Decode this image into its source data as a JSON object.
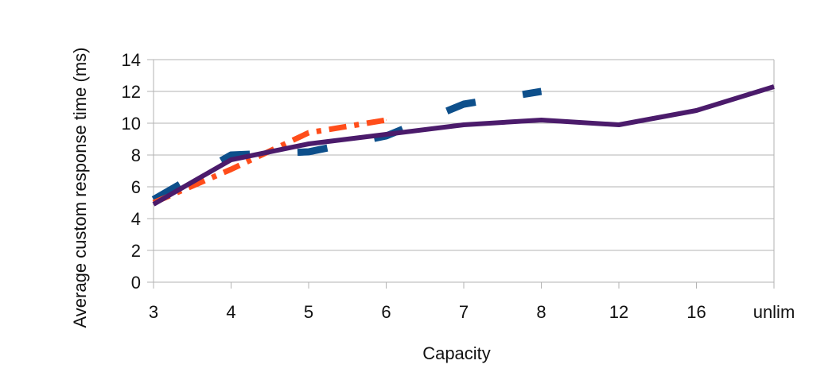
{
  "chart_data": {
    "type": "line",
    "title": "",
    "xlabel": "Capacity",
    "ylabel": "Average custom response time (ms)",
    "categories": [
      "3",
      "4",
      "5",
      "6",
      "7",
      "8",
      "12",
      "16",
      "unlim"
    ],
    "ylim": [
      0,
      14
    ],
    "yticks": [
      0,
      2,
      4,
      6,
      8,
      10,
      12,
      14
    ],
    "grid": true,
    "legend": "none",
    "series": [
      {
        "name": "series-1",
        "color": "#0d4f8b",
        "style": "long-dash",
        "values": [
          5.2,
          8.0,
          8.2,
          9.2,
          11.2,
          12.0,
          null,
          null,
          null
        ]
      },
      {
        "name": "series-2",
        "color": "#ff4d1a",
        "style": "dash-dot",
        "values": [
          5.0,
          7.1,
          9.4,
          10.2,
          null,
          null,
          null,
          null,
          null
        ]
      },
      {
        "name": "series-3",
        "color": "#4b1b6b",
        "style": "solid",
        "values": [
          4.9,
          7.7,
          8.7,
          9.3,
          9.9,
          10.2,
          9.9,
          10.8,
          12.3
        ]
      }
    ]
  }
}
